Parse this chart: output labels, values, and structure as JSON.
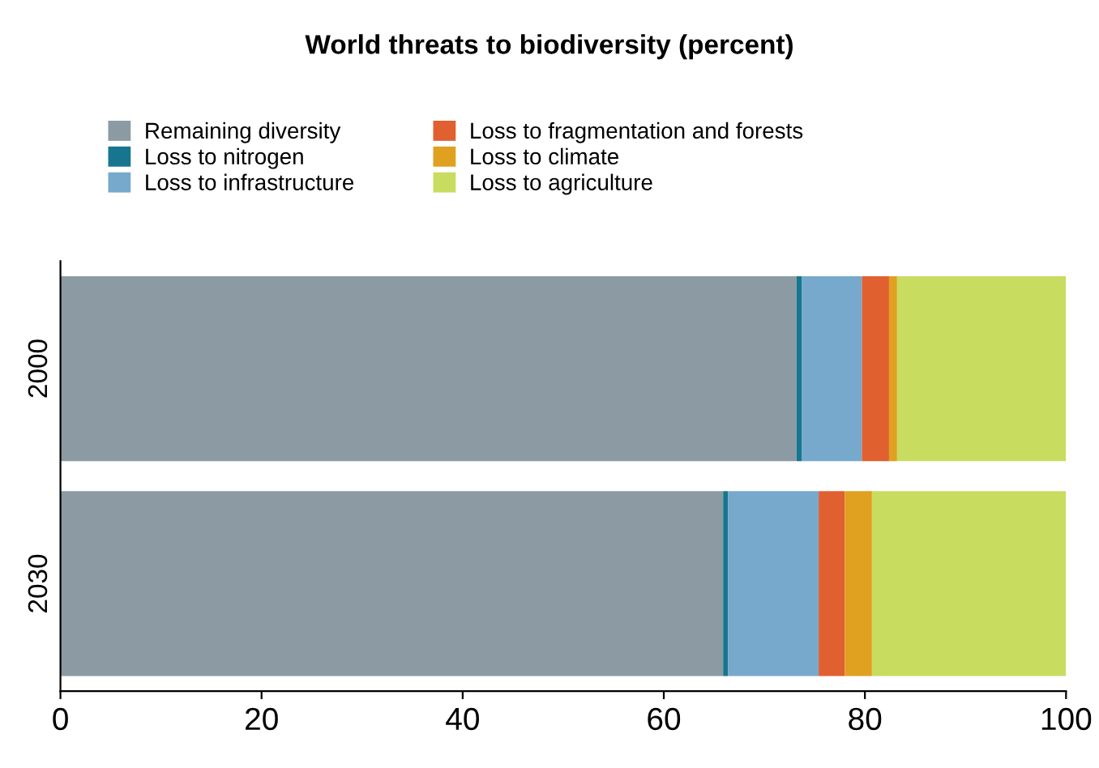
{
  "chart_data": {
    "type": "bar",
    "orientation": "horizontal",
    "stacked": true,
    "title": "World threats to biodiversity (percent)",
    "categories": [
      "2000",
      "2030"
    ],
    "series": [
      {
        "name": "Remaining diversity",
        "color": "#8c9aa3",
        "values": [
          73.2,
          65.9
        ]
      },
      {
        "name": "Loss to nitrogen",
        "color": "#17768f",
        "values": [
          0.5,
          0.5
        ]
      },
      {
        "name": "Loss to infrastructure",
        "color": "#76a9cc",
        "values": [
          6.0,
          9.0
        ]
      },
      {
        "name": "Loss to fragmentation and forests",
        "color": "#e06030",
        "values": [
          2.7,
          2.6
        ]
      },
      {
        "name": "Loss to climate",
        "color": "#e0a020",
        "values": [
          0.8,
          2.7
        ]
      },
      {
        "name": "Loss to agriculture",
        "color": "#c8dc60",
        "values": [
          16.8,
          19.3
        ]
      }
    ],
    "xlim": [
      0,
      100
    ],
    "xticks": [
      0,
      20,
      40,
      60,
      80,
      100
    ],
    "grid": false,
    "legend": "top"
  }
}
